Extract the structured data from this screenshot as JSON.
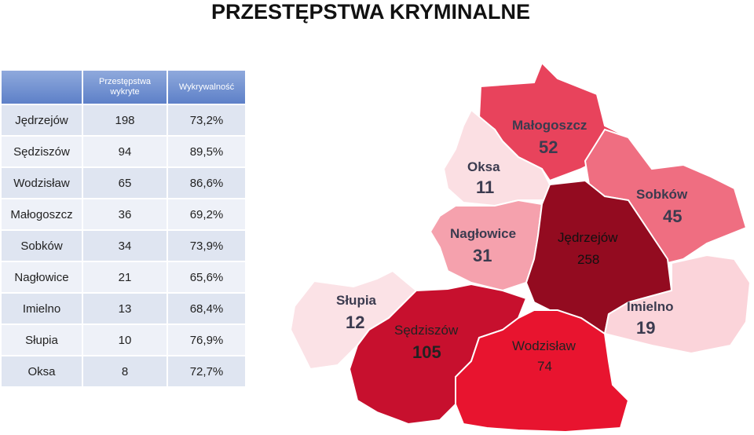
{
  "title": "PRZESTĘPSTWA KRYMINALNE",
  "table": {
    "headers": [
      "Przestępstwa wykryte",
      "Wykrywalność"
    ],
    "rows": [
      [
        "Jędrzejów",
        198,
        "73,2%"
      ],
      [
        "Sędziszów",
        94,
        "89,5%"
      ],
      [
        "Wodzisław",
        65,
        "86,6%"
      ],
      [
        "Małogoszcz",
        36,
        "69,2%"
      ],
      [
        "Sobków",
        34,
        "73,9%"
      ],
      [
        "Nagłowice",
        21,
        "65,6%"
      ],
      [
        "Imielno",
        13,
        "68,4%"
      ],
      [
        "Słupia",
        10,
        "76,9%"
      ],
      [
        "Oksa",
        8,
        "72,7%"
      ]
    ]
  },
  "map": {
    "regions": [
      {
        "name": "Małogoszcz",
        "value": 52,
        "color": "#e8435c"
      },
      {
        "name": "Oksa",
        "value": 11,
        "color": "#fbdfe3"
      },
      {
        "name": "Sobków",
        "value": 45,
        "color": "#ef6e81"
      },
      {
        "name": "Nagłowice",
        "value": 31,
        "color": "#f5a1ad"
      },
      {
        "name": "Jędrzejów",
        "value": 258,
        "color": "#930b20"
      },
      {
        "name": "Imielno",
        "value": 19,
        "color": "#fbd4da"
      },
      {
        "name": "Słupia",
        "value": 12,
        "color": "#fbe2e6"
      },
      {
        "name": "Sędziszów",
        "value": 105,
        "color": "#c7102e"
      },
      {
        "name": "Wodzisław",
        "value": 74,
        "color": "#e8142f"
      }
    ]
  }
}
